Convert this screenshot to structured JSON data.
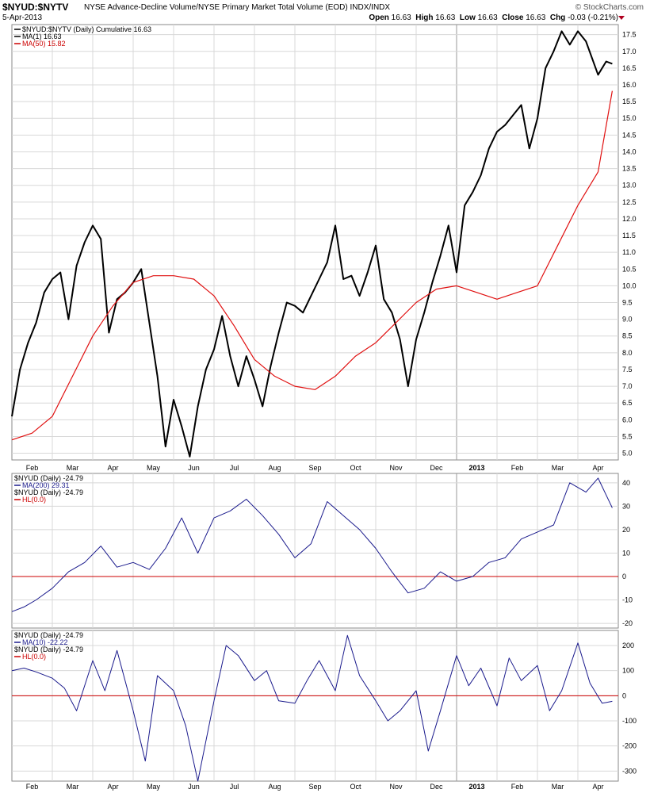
{
  "header": {
    "symbol": "$NYUD:$NYTV",
    "description": "NYSE Advance-Decline Volume/NYSE Primary Market Total Volume (EOD) INDX/INDX",
    "brand": "© StockCharts.com",
    "date": "5-Apr-2013",
    "open_label": "Open",
    "open": "16.63",
    "high_label": "High",
    "high": "16.63",
    "low_label": "Low",
    "low": "16.63",
    "close_label": "Close",
    "close": "16.63",
    "chg_label": "Chg",
    "chg": "-0.03 (-0.21%)",
    "chg_color": "#b00020"
  },
  "legends": {
    "main": [
      {
        "text": "$NYUD:$NYTV (Daily) Cumulative 16.63",
        "color": "#000000"
      },
      {
        "text": "MA(1) 16.63",
        "color": "#000000"
      },
      {
        "text": "MA(50) 15.82",
        "color": "#cc0000"
      }
    ],
    "p2": [
      {
        "text": "$NYUD (Daily) -24.79",
        "color": "#000000",
        "swatch": false
      },
      {
        "text": "MA(200) 29.31",
        "color": "#1a1a8c",
        "swatch": true
      },
      {
        "text": "$NYUD (Daily) -24.79",
        "color": "#000000",
        "swatch": false
      },
      {
        "text": "HL(0.0)",
        "color": "#cc0000",
        "swatch": true
      }
    ],
    "p3": [
      {
        "text": "$NYUD (Daily) -24.79",
        "color": "#000000",
        "swatch": false
      },
      {
        "text": "MA(10) -22.22",
        "color": "#1a1a8c",
        "swatch": true
      },
      {
        "text": "$NYUD (Daily) -24.79",
        "color": "#000000",
        "swatch": false
      },
      {
        "text": "HL(0.0)",
        "color": "#cc0000",
        "swatch": true
      }
    ]
  },
  "x_axis": {
    "labels": [
      "Feb",
      "Mar",
      "Apr",
      "May",
      "Jun",
      "Jul",
      "Aug",
      "Sep",
      "Oct",
      "Nov",
      "Dec",
      "2013",
      "Feb",
      "Mar",
      "Apr"
    ],
    "positions": [
      0.5,
      1.5,
      2.5,
      3.5,
      4.5,
      5.5,
      6.5,
      7.5,
      8.5,
      9.5,
      10.5,
      11.5,
      12.5,
      13.5,
      14.5
    ],
    "bold_index": 11,
    "year_separator_month": 12
  },
  "colors": {
    "price": "#000000",
    "ma50": "#e01010",
    "indicator": "#1a1a8c",
    "hline": "#cc0000",
    "grid": "#d8d8d8",
    "border": "#888888"
  },
  "chart_data": [
    {
      "type": "line",
      "name": "cumulative",
      "ylim": [
        4.8,
        17.8
      ],
      "yticks": [
        "5.0",
        "5.5",
        "6.0",
        "6.5",
        "7.0",
        "7.5",
        "8.0",
        "8.5",
        "9.0",
        "9.5",
        "10.0",
        "10.5",
        "11.0",
        "11.5",
        "12.0",
        "12.5",
        "13.0",
        "13.5",
        "14.0",
        "14.5",
        "15.0",
        "15.5",
        "16.0",
        "16.5",
        "17.0",
        "17.5"
      ],
      "series": [
        {
          "name": "$NYUD:$NYTV (Daily) Cumulative 16.63",
          "x": [
            0.0,
            0.2,
            0.4,
            0.6,
            0.8,
            1.0,
            1.2,
            1.4,
            1.6,
            1.8,
            2.0,
            2.2,
            2.4,
            2.6,
            2.8,
            3.0,
            3.2,
            3.4,
            3.6,
            3.8,
            4.0,
            4.2,
            4.4,
            4.6,
            4.8,
            5.0,
            5.2,
            5.4,
            5.6,
            5.8,
            6.0,
            6.2,
            6.4,
            6.6,
            6.8,
            7.0,
            7.2,
            7.4,
            7.6,
            7.8,
            8.0,
            8.2,
            8.4,
            8.6,
            8.8,
            9.0,
            9.2,
            9.4,
            9.6,
            9.8,
            10.0,
            10.2,
            10.4,
            10.6,
            10.8,
            11.0,
            11.2,
            11.4,
            11.6,
            11.8,
            12.0,
            12.2,
            12.4,
            12.6,
            12.8,
            13.0,
            13.2,
            13.4,
            13.6,
            13.8,
            14.0,
            14.2,
            14.5,
            14.7,
            14.85
          ],
          "y": [
            6.1,
            7.5,
            8.3,
            8.9,
            9.8,
            10.2,
            10.4,
            9.0,
            10.6,
            11.3,
            11.8,
            11.4,
            8.6,
            9.6,
            9.8,
            10.1,
            10.5,
            8.9,
            7.3,
            5.2,
            6.6,
            5.8,
            4.9,
            6.4,
            7.5,
            8.1,
            9.1,
            7.9,
            7.0,
            7.9,
            7.2,
            6.4,
            7.6,
            8.6,
            9.5,
            9.4,
            9.2,
            9.7,
            10.2,
            10.7,
            11.8,
            10.2,
            10.3,
            9.7,
            10.4,
            11.2,
            9.6,
            9.2,
            8.4,
            7.0,
            8.4,
            9.2,
            10.1,
            10.9,
            11.8,
            10.4,
            12.4,
            12.8,
            13.3,
            14.1,
            14.6,
            14.8,
            15.1,
            15.4,
            14.1,
            15.0,
            16.5,
            17.0,
            17.6,
            17.2,
            17.6,
            17.3,
            16.3,
            16.7,
            16.63
          ]
        },
        {
          "name": "MA(50) 15.82",
          "x": [
            0.0,
            0.5,
            1.0,
            1.5,
            2.0,
            2.5,
            3.0,
            3.5,
            4.0,
            4.5,
            5.0,
            5.5,
            6.0,
            6.5,
            7.0,
            7.5,
            8.0,
            8.5,
            9.0,
            9.5,
            10.0,
            10.5,
            11.0,
            11.5,
            12.0,
            12.5,
            13.0,
            13.5,
            14.0,
            14.5,
            14.85
          ],
          "y": [
            5.4,
            5.6,
            6.1,
            7.3,
            8.5,
            9.4,
            10.1,
            10.3,
            10.3,
            10.2,
            9.7,
            8.8,
            7.8,
            7.3,
            7.0,
            6.9,
            7.3,
            7.9,
            8.3,
            8.9,
            9.5,
            9.9,
            10.0,
            9.8,
            9.6,
            9.8,
            10.0,
            11.2,
            12.4,
            13.4,
            15.82
          ]
        }
      ]
    },
    {
      "type": "line",
      "name": "MA200",
      "ylim": [
        -22,
        44
      ],
      "yticks": [
        "-20",
        "-10",
        "0",
        "10",
        "20",
        "30",
        "40"
      ],
      "hline": 0,
      "series": [
        {
          "name": "MA(200) 29.31",
          "x": [
            0.0,
            0.3,
            0.6,
            1.0,
            1.4,
            1.8,
            2.2,
            2.6,
            3.0,
            3.4,
            3.8,
            4.2,
            4.6,
            5.0,
            5.4,
            5.8,
            6.2,
            6.6,
            7.0,
            7.4,
            7.8,
            8.2,
            8.6,
            9.0,
            9.4,
            9.8,
            10.2,
            10.6,
            11.0,
            11.4,
            11.8,
            12.2,
            12.6,
            13.0,
            13.4,
            13.8,
            14.2,
            14.5,
            14.85
          ],
          "y": [
            -15,
            -13,
            -10,
            -5,
            2,
            6,
            13,
            4,
            6,
            3,
            12,
            25,
            10,
            25,
            28,
            33,
            26,
            18,
            8,
            14,
            32,
            26,
            20,
            12,
            2,
            -7,
            -5,
            2,
            -2,
            0,
            6,
            8,
            16,
            19,
            22,
            40,
            36,
            42,
            29.31
          ]
        }
      ]
    },
    {
      "type": "line",
      "name": "MA10",
      "ylim": [
        -340,
        260
      ],
      "yticks": [
        "-300",
        "-200",
        "-100",
        "0",
        "100",
        "200"
      ],
      "hline": 0,
      "series": [
        {
          "name": "MA(10) -22.22",
          "x": [
            0.0,
            0.3,
            0.6,
            1.0,
            1.3,
            1.6,
            2.0,
            2.3,
            2.6,
            3.0,
            3.3,
            3.6,
            4.0,
            4.3,
            4.6,
            5.0,
            5.3,
            5.6,
            6.0,
            6.3,
            6.6,
            7.0,
            7.3,
            7.6,
            8.0,
            8.3,
            8.6,
            9.0,
            9.3,
            9.6,
            10.0,
            10.3,
            10.6,
            11.0,
            11.3,
            11.6,
            12.0,
            12.3,
            12.6,
            13.0,
            13.3,
            13.6,
            14.0,
            14.3,
            14.6,
            14.85
          ],
          "y": [
            100,
            110,
            95,
            70,
            30,
            -60,
            140,
            20,
            180,
            -60,
            -260,
            80,
            20,
            -120,
            -340,
            -20,
            200,
            160,
            60,
            100,
            -20,
            -30,
            60,
            140,
            20,
            240,
            80,
            -20,
            -100,
            -60,
            20,
            -220,
            -60,
            160,
            40,
            110,
            -40,
            150,
            60,
            120,
            -60,
            20,
            210,
            50,
            -30,
            -22.22
          ]
        }
      ]
    }
  ]
}
